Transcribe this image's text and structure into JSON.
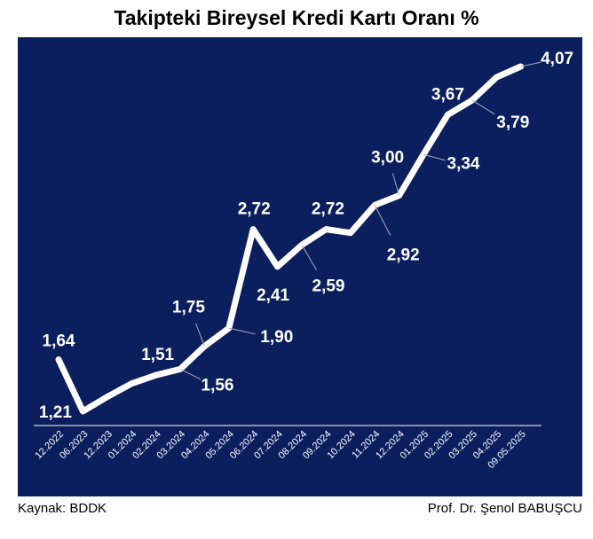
{
  "chart_data": {
    "type": "line",
    "title": "Takipteki Bireysel Kredi Kartı Oranı %",
    "categories": [
      "12.2022",
      "06.2023",
      "12.2023",
      "01.2024",
      "02.2024",
      "03.2024",
      "04.2024",
      "05.2024",
      "06.2024",
      "07.2024",
      "08.2024",
      "09.2024",
      "10.2024",
      "11.2024",
      "12.2024",
      "01.2025",
      "02.2025",
      "03.2025",
      "04.2025",
      "09.05.2025"
    ],
    "series": [
      {
        "color": "#ffffff",
        "values": [
          1.64,
          1.21,
          1.33,
          1.44,
          1.51,
          1.56,
          1.75,
          1.9,
          2.72,
          2.41,
          2.59,
          2.72,
          2.69,
          2.92,
          3.0,
          3.34,
          3.67,
          3.79,
          3.98,
          4.07
        ],
        "value_labels": [
          "1,64",
          "1,21",
          null,
          null,
          "1,51",
          "1,56",
          "1,75",
          "1,90",
          "2,72",
          "2,41",
          "2,59",
          "2,72",
          null,
          "2,92",
          "3,00",
          "3,34",
          "3,67",
          "3,79",
          null,
          "4,07"
        ]
      }
    ],
    "background": "#0b1f5e",
    "source": "Kaynak: BDDK",
    "author": "Prof. Dr. Şenol BABUŞCU"
  }
}
